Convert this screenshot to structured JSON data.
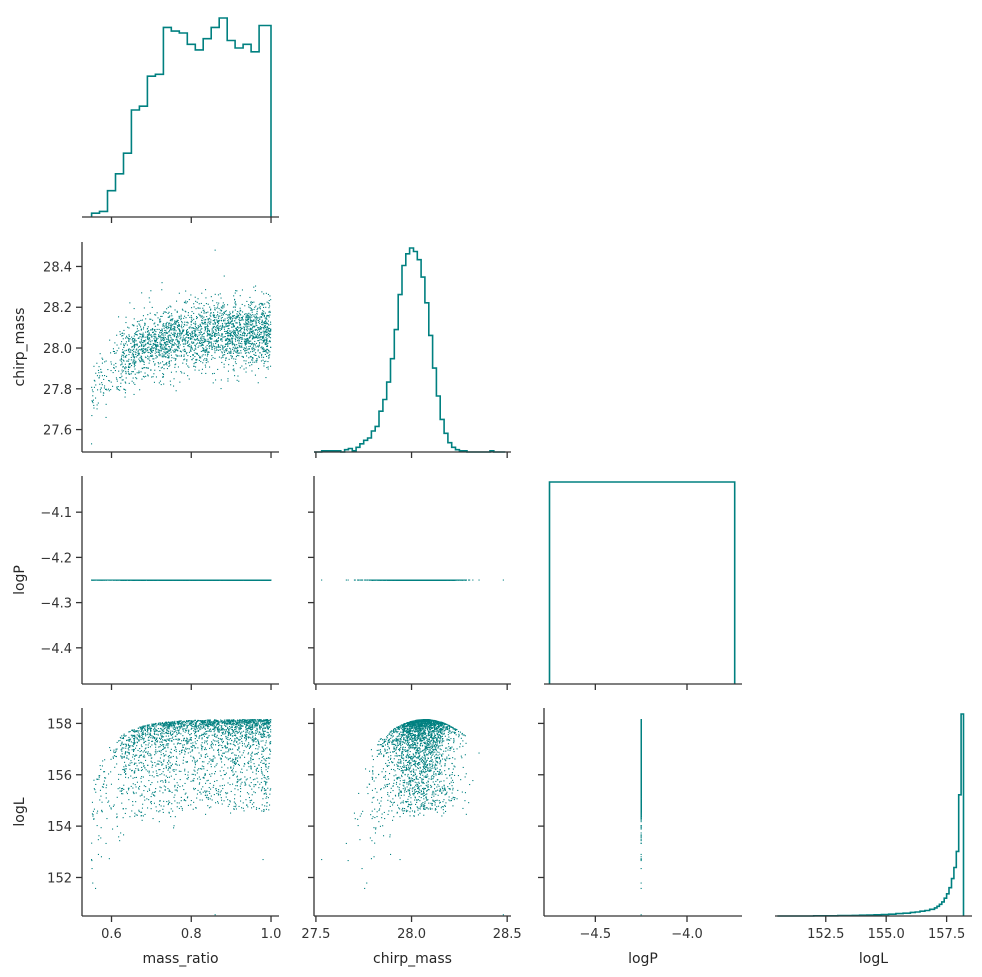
{
  "colors": {
    "series": "#008080",
    "axis": "#333333",
    "text": "#262626"
  },
  "variables": [
    "mass_ratio",
    "chirp_mass",
    "logP",
    "logL"
  ],
  "chart_data": {
    "type": "corner",
    "title": "",
    "variables": [
      "mass_ratio",
      "chirp_mass",
      "logP",
      "logL"
    ],
    "ranges": {
      "mass_ratio": [
        0.526,
        1.02
      ],
      "chirp_mass": [
        27.49,
        28.52
      ],
      "logP": [
        -4.78,
        -3.7
      ],
      "logP_y": [
        -4.48,
        -4.02
      ],
      "logL": [
        150.5,
        158.6
      ],
      "logL_hist_x": [
        150.4,
        158.55
      ]
    },
    "ticks": {
      "mass_ratio": {
        "values": [
          0.6,
          0.8,
          1.0
        ],
        "labels": [
          "0.6",
          "0.8",
          "1.0"
        ]
      },
      "chirp_mass_y": {
        "values": [
          27.6,
          27.8,
          28.0,
          28.2,
          28.4
        ],
        "labels": [
          "27.6",
          "27.8",
          "28.0",
          "28.2",
          "28.4"
        ]
      },
      "chirp_mass_x": {
        "values": [
          27.5,
          28.0,
          28.5
        ],
        "labels": [
          "27.5",
          "28.0",
          "28.5"
        ]
      },
      "logP_y": {
        "values": [
          -4.4,
          -4.3,
          -4.2,
          -4.1
        ],
        "labels": [
          "−4.4",
          "−4.3",
          "−4.2",
          "−4.1"
        ]
      },
      "logP_x": {
        "values": [
          -4.5,
          -4.0
        ],
        "labels": [
          "−4.5",
          "−4.0"
        ]
      },
      "logL_y": {
        "values": [
          152,
          154,
          156,
          158
        ],
        "labels": [
          "152",
          "154",
          "156",
          "158"
        ]
      },
      "logL_x": {
        "values": [
          152.5,
          155.0,
          157.5
        ],
        "labels": [
          "152.5",
          "155.0",
          "157.5"
        ]
      }
    },
    "histograms": {
      "mass_ratio": {
        "bin_edges": [
          0.55,
          0.57,
          0.59,
          0.61,
          0.63,
          0.65,
          0.67,
          0.69,
          0.71,
          0.73,
          0.75,
          0.77,
          0.79,
          0.81,
          0.83,
          0.85,
          0.87,
          0.89,
          0.91,
          0.93,
          0.95,
          0.97,
          0.99,
          1.0
        ],
        "counts": [
          2,
          3,
          14,
          23,
          34,
          57,
          59,
          75,
          76,
          101,
          99,
          98,
          92,
          89,
          95,
          101,
          106,
          94,
          90,
          92,
          88,
          102,
          102
        ]
      },
      "chirp_mass": {
        "bin_edges": [
          27.49,
          27.51,
          27.53,
          27.55,
          27.57,
          27.59,
          27.61,
          27.63,
          27.65,
          27.67,
          27.69,
          27.71,
          27.73,
          27.75,
          27.77,
          27.79,
          27.81,
          27.83,
          27.85,
          27.87,
          27.89,
          27.91,
          27.93,
          27.95,
          27.97,
          27.99,
          28.01,
          28.03,
          28.05,
          28.07,
          28.09,
          28.11,
          28.13,
          28.15,
          28.17,
          28.19,
          28.21,
          28.23,
          28.25,
          28.27,
          28.29,
          28.31,
          28.33,
          28.35,
          28.37,
          28.39,
          28.41,
          28.43,
          28.45,
          28.47,
          28.49
        ],
        "counts": [
          0,
          0,
          1,
          1,
          1,
          1,
          1,
          0,
          2,
          3,
          1,
          4,
          7,
          10,
          12,
          18,
          22,
          35,
          45,
          60,
          80,
          105,
          135,
          160,
          170,
          175,
          172,
          165,
          150,
          128,
          100,
          72,
          48,
          28,
          16,
          8,
          4,
          2,
          1,
          1,
          0,
          0,
          0,
          0,
          0,
          0,
          1,
          0,
          0,
          0
        ]
      },
      "logP": {
        "bin_edges": [
          -4.75,
          -3.74
        ],
        "counts": [
          1
        ]
      },
      "logL": {
        "bin_edges": [
          150.5,
          151.5,
          152.0,
          152.5,
          153.0,
          153.3,
          153.6,
          153.9,
          154.2,
          154.5,
          154.8,
          155.1,
          155.4,
          155.7,
          156.0,
          156.2,
          156.4,
          156.6,
          156.8,
          157.0,
          157.1,
          157.2,
          157.3,
          157.4,
          157.5,
          157.6,
          157.7,
          157.8,
          157.9,
          158.0,
          158.1,
          158.2
        ],
        "counts": [
          0,
          0,
          1,
          1,
          2,
          2,
          3,
          4,
          5,
          6,
          7,
          9,
          12,
          14,
          18,
          20,
          24,
          27,
          33,
          40,
          48,
          58,
          70,
          88,
          110,
          140,
          185,
          240,
          320,
          600,
          1000
        ]
      }
    },
    "scatter_params": {
      "n_points": 2600,
      "logP_value": -4.25,
      "logL_max": 158.15,
      "chirp_mass_peak": 28.07,
      "mass_ratio_transition": 0.75
    }
  }
}
